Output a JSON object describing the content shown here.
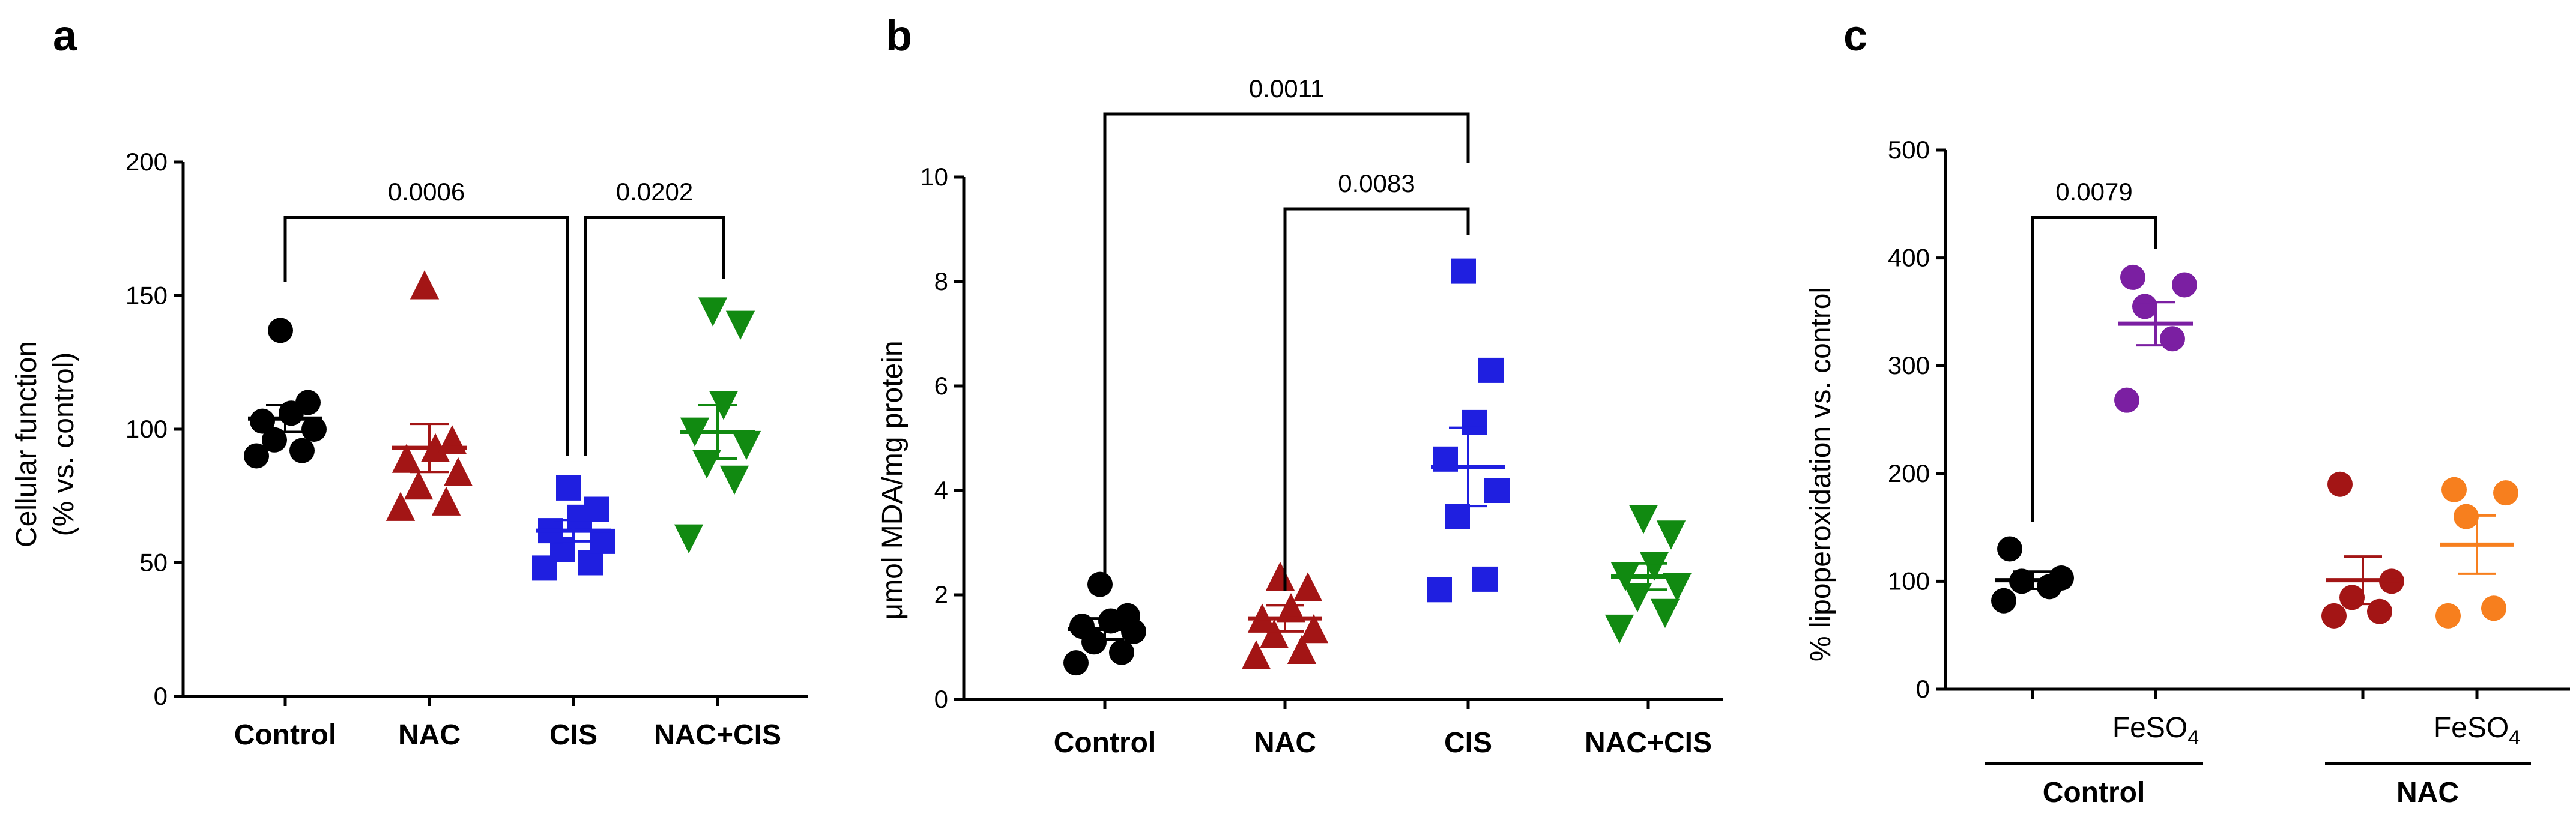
{
  "chart_data": [
    {
      "type": "scatter",
      "panel": "a",
      "ylabel_lines": [
        "Cellular function",
        "(% vs. control)"
      ],
      "yticks": [
        "0",
        "50",
        "100",
        "150",
        "200"
      ],
      "ylim": [
        0,
        200
      ],
      "groups": [
        {
          "label": "Control",
          "color": "#000000",
          "marker": "circle",
          "points": [
            90,
            92,
            96,
            100,
            103,
            106,
            110,
            137
          ],
          "mean": 104,
          "sem_low": 99,
          "sem_high": 109
        },
        {
          "label": "NAC",
          "color": "#a31515",
          "marker": "triangle-up",
          "points": [
            70,
            72,
            78,
            83,
            88,
            92,
            95,
            153
          ],
          "mean": 93,
          "sem_low": 84,
          "sem_high": 102
        },
        {
          "label": "CIS",
          "color": "#1f1fe0",
          "marker": "square",
          "points": [
            48,
            50,
            55,
            58,
            62,
            67,
            70,
            78
          ],
          "mean": 62,
          "sem_low": 58,
          "sem_high": 66
        },
        {
          "label": "NAC+CIS",
          "color": "#118a11",
          "marker": "triangle-down",
          "points": [
            60,
            82,
            88,
            95,
            100,
            110,
            140,
            145
          ],
          "mean": 99,
          "sem_low": 89,
          "sem_high": 109
        }
      ],
      "comparisons": [
        {
          "p": "0.0006",
          "from": 0,
          "to": 2
        },
        {
          "p": "0.0202",
          "from": 2,
          "to": 3
        }
      ]
    },
    {
      "type": "scatter",
      "panel": "b",
      "ylabel": "μmol MDA/mg protein",
      "yticks": [
        "0",
        "2",
        "4",
        "6",
        "8",
        "10"
      ],
      "ylim": [
        0,
        10
      ],
      "groups": [
        {
          "label": "Control",
          "color": "#000000",
          "marker": "circle",
          "points": [
            0.7,
            0.9,
            1.1,
            1.3,
            1.4,
            1.5,
            1.6,
            2.2
          ],
          "mean": 1.35,
          "sem_low": 1.15,
          "sem_high": 1.55
        },
        {
          "label": "NAC",
          "color": "#a31515",
          "marker": "triangle-up",
          "points": [
            0.8,
            0.9,
            1.2,
            1.3,
            1.5,
            1.7,
            2.1,
            2.3
          ],
          "mean": 1.55,
          "sem_low": 1.3,
          "sem_high": 1.8
        },
        {
          "label": "CIS",
          "color": "#1f1fe0",
          "marker": "square",
          "points": [
            2.1,
            2.3,
            3.5,
            4.0,
            4.6,
            5.3,
            6.3,
            8.2
          ],
          "mean": 4.45,
          "sem_low": 3.7,
          "sem_high": 5.2
        },
        {
          "label": "NAC+CIS",
          "color": "#118a11",
          "marker": "triangle-down",
          "points": [
            1.4,
            1.7,
            2.0,
            2.2,
            2.4,
            2.6,
            3.2,
            3.5
          ],
          "mean": 2.35,
          "sem_low": 2.1,
          "sem_high": 2.6
        }
      ],
      "comparisons": [
        {
          "p": "0.0011",
          "from": 0,
          "to": 2
        },
        {
          "p": "0.0083",
          "from": 1,
          "to": 2
        }
      ]
    },
    {
      "type": "scatter",
      "panel": "c",
      "ylabel": "% lipoperoxidation vs. control",
      "yticks": [
        "0",
        "100",
        "200",
        "300",
        "400",
        "500"
      ],
      "ylim": [
        0,
        500
      ],
      "groups": [
        {
          "label": "",
          "color": "#000000",
          "marker": "circle",
          "points": [
            82,
            95,
            100,
            103,
            130
          ],
          "mean": 101,
          "sem_low": 93,
          "sem_high": 109
        },
        {
          "label": "FeSO4",
          "color": "#7b1fa2",
          "marker": "circle",
          "points": [
            268,
            325,
            355,
            375,
            382
          ],
          "mean": 339,
          "sem_low": 319,
          "sem_high": 359
        },
        {
          "label": "",
          "color": "#a31515",
          "marker": "circle",
          "points": [
            68,
            72,
            85,
            100,
            190
          ],
          "mean": 101,
          "sem_low": 79,
          "sem_high": 123
        },
        {
          "label": "FeSO4",
          "color": "#f77f1e",
          "marker": "circle",
          "points": [
            68,
            75,
            160,
            182,
            185
          ],
          "mean": 134,
          "sem_low": 107,
          "sem_high": 161
        }
      ],
      "group_labels": [
        "Control",
        "NAC"
      ],
      "comparisons": [
        {
          "p": "0.0079",
          "from": 0,
          "to": 1
        }
      ]
    }
  ]
}
